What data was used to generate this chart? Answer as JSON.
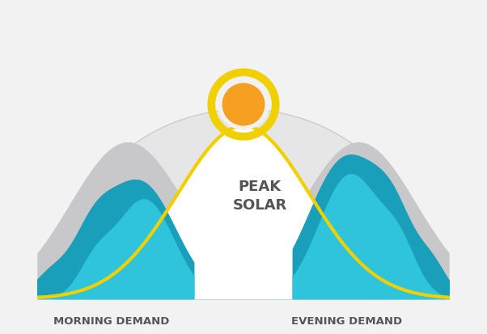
{
  "bg_color": "#f2f2f2",
  "dome_color": "#e6e6e6",
  "dome_edge_color": "#cccccc",
  "teal_base": "#1a9fba",
  "teal_light": "#2ec4dc",
  "teal_mid": "#27b5cc",
  "solar_curve_color": "#f0d000",
  "sun_inner_color": "#f5a020",
  "sun_ring_color": "#f0d000",
  "gray_mountain_color": "#c8c8ca",
  "white_color": "#ffffff",
  "text_color": "#555555",
  "peak_solar_text": "PEAK\nSOLAR",
  "morning_label": "MORNING DEMAND",
  "evening_label": "EVENING DEMAND",
  "peak_solar_fontsize": 13,
  "label_fontsize": 9.5
}
